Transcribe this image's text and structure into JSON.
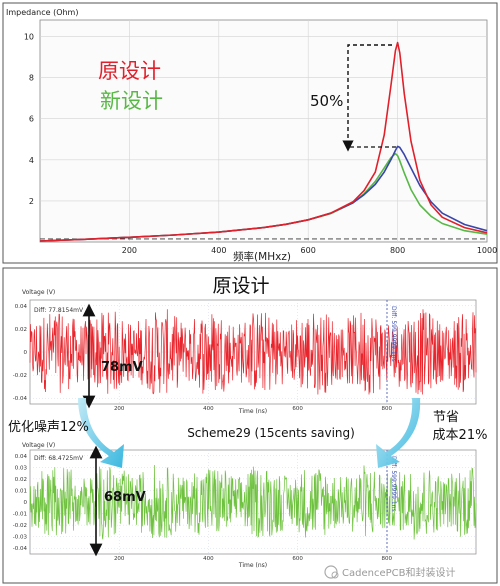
{
  "chart_data": [
    {
      "type": "line",
      "title": "",
      "ylabel": "Impedance (Ohm)",
      "xlabel": "频率(MHxz)",
      "xlim": [
        0,
        1000
      ],
      "ylim": [
        0,
        10.8
      ],
      "xticks": [
        200,
        400,
        600,
        800,
        1000
      ],
      "yticks": [
        2,
        4,
        6,
        8,
        10
      ],
      "grid": true,
      "legend_position": "top-left",
      "x": [
        0,
        100,
        200,
        300,
        400,
        500,
        550,
        600,
        650,
        700,
        725,
        750,
        770,
        785,
        795,
        800,
        805,
        815,
        830,
        850,
        875,
        900,
        950,
        1000
      ],
      "series": [
        {
          "name": "原设计",
          "color": "#e0202a",
          "values": [
            0.05,
            0.13,
            0.23,
            0.34,
            0.48,
            0.7,
            0.86,
            1.08,
            1.4,
            1.95,
            2.5,
            3.4,
            5.2,
            7.6,
            9.3,
            9.7,
            9.2,
            7.2,
            4.9,
            3.0,
            1.8,
            1.2,
            0.7,
            0.45
          ]
        },
        {
          "name": "新设计",
          "color": "#58b846",
          "values": [
            0.05,
            0.13,
            0.23,
            0.34,
            0.48,
            0.7,
            0.86,
            1.08,
            1.38,
            1.9,
            2.35,
            2.95,
            3.6,
            4.1,
            4.3,
            4.2,
            3.95,
            3.35,
            2.55,
            1.8,
            1.25,
            0.9,
            0.55,
            0.38
          ]
        },
        {
          "name": "",
          "color": "#3a46a8",
          "values": [
            0.05,
            0.13,
            0.23,
            0.34,
            0.48,
            0.7,
            0.86,
            1.08,
            1.4,
            1.9,
            2.3,
            2.8,
            3.4,
            4.0,
            4.45,
            4.65,
            4.6,
            4.25,
            3.6,
            2.75,
            1.95,
            1.4,
            0.85,
            0.55
          ]
        }
      ],
      "annotations": [
        {
          "text": "50%",
          "from_y": 9.7,
          "to_y": 4.65,
          "x": 800
        }
      ],
      "legend": [
        "原设计",
        "新设计"
      ]
    },
    {
      "type": "line",
      "title": "原设计",
      "ylabel": "Voltage (V)",
      "xlabel": "Time (ns)",
      "xlim": [
        0,
        1000
      ],
      "ylim": [
        -0.045,
        0.045
      ],
      "xticks": [
        200,
        400,
        600,
        800
      ],
      "yticks": [
        0.04,
        0.02,
        0,
        -0.02,
        -0.04
      ],
      "ytick_labels": [
        "0.04",
        "0.02",
        "0",
        "-0.02",
        "-0.04"
      ],
      "series": [
        {
          "name": "",
          "color": "#e8252c",
          "amplitude": 0.039,
          "center": 0
        }
      ],
      "measurements": {
        "diff": "Diff: 77.8154mV",
        "marker": "Diff: 599.9999.1ns"
      },
      "span_label": "78mV"
    },
    {
      "type": "line",
      "title": "",
      "ylabel": "Voltage (V)",
      "xlabel": "Time (ns)",
      "xlim": [
        0,
        1000
      ],
      "ylim": [
        -0.045,
        0.045
      ],
      "xticks": [
        200,
        400,
        600,
        800
      ],
      "yticks": [
        0.04,
        0.03,
        0.02,
        0.01,
        0,
        -0.01,
        -0.02,
        -0.03,
        -0.04
      ],
      "ytick_labels": [
        "0.04",
        "0.03",
        "0.02",
        "0.01",
        "0",
        "-0.01",
        "-0.02",
        "-0.03",
        "-0.04"
      ],
      "series": [
        {
          "name": "",
          "color": "#6fc23f",
          "amplitude": 0.034,
          "center": 0
        }
      ],
      "measurements": {
        "diff": "Diff: 68.4725mV",
        "marker": "Diff: 599.9999.1ns"
      },
      "span_label": "68mV"
    }
  ],
  "labels": {
    "left_note": "优化噪声12%",
    "right_note_line1": "节省",
    "right_note_line2": "成本21%",
    "scheme": "Scheme29 (15cents saving)"
  },
  "watermark": "CadencePCB和封装设计"
}
